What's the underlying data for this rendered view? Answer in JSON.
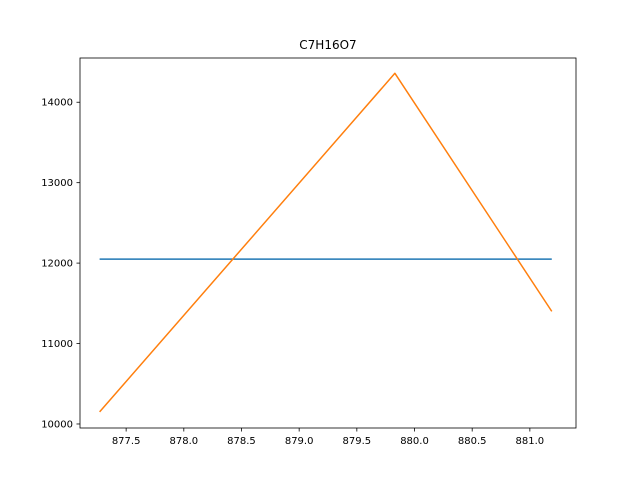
{
  "chart_data": {
    "type": "line",
    "title": "C7H16O7",
    "xlabel": "",
    "ylabel": "",
    "xlim": [
      877.1,
      881.4
    ],
    "ylim": [
      9950,
      14550
    ],
    "xticks": [
      877.5,
      878.0,
      878.5,
      879.0,
      879.5,
      880.0,
      880.5,
      881.0
    ],
    "xtick_labels": [
      "877.5",
      "878.0",
      "878.5",
      "879.0",
      "879.5",
      "880.0",
      "880.5",
      "881.0"
    ],
    "yticks": [
      10000,
      11000,
      12000,
      13000,
      14000
    ],
    "ytick_labels": [
      "10000",
      "11000",
      "12000",
      "13000",
      "14000"
    ],
    "grid": false,
    "series": [
      {
        "color": "#1f77b4",
        "x": [
          877.27,
          881.19
        ],
        "y": [
          12050,
          12050
        ]
      },
      {
        "color": "#ff7f0e",
        "x": [
          877.27,
          879.83,
          881.19
        ],
        "y": [
          10150,
          14360,
          11400
        ]
      }
    ]
  }
}
